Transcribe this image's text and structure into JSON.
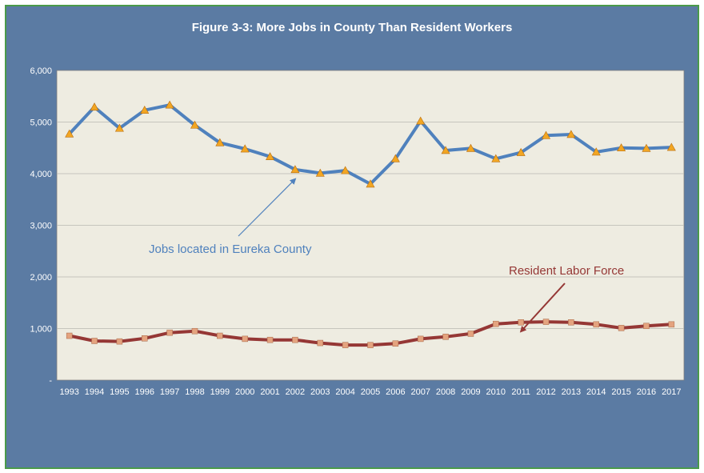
{
  "chart_data": {
    "type": "line",
    "title": "Figure 3-3: More Jobs in County Than Resident Workers",
    "categories": [
      "1993",
      "1994",
      "1995",
      "1996",
      "1997",
      "1998",
      "1999",
      "2000",
      "2001",
      "2002",
      "2003",
      "2004",
      "2005",
      "2006",
      "2007",
      "2008",
      "2009",
      "2010",
      "2011",
      "2012",
      "2013",
      "2014",
      "2015",
      "2016",
      "2017"
    ],
    "series": [
      {
        "name": "Jobs located in Eureka County",
        "color": "#4f81bd",
        "marker_color": "#f2a623",
        "marker": "triangle",
        "values": [
          4770,
          5290,
          4880,
          5230,
          5330,
          4940,
          4600,
          4480,
          4330,
          4080,
          4010,
          4060,
          3800,
          4290,
          5020,
          4450,
          4490,
          4290,
          4410,
          4740,
          4760,
          4420,
          4500,
          4490,
          4510
        ]
      },
      {
        "name": "Resident Labor Force",
        "color": "#953735",
        "marker_color": "#e4a37f",
        "marker": "square",
        "values": [
          860,
          760,
          750,
          810,
          920,
          950,
          860,
          800,
          780,
          780,
          720,
          680,
          680,
          710,
          800,
          840,
          900,
          1090,
          1120,
          1130,
          1120,
          1080,
          1010,
          1050,
          1080
        ]
      }
    ],
    "y_ticks": [
      "-",
      "1,000",
      "2,000",
      "3,000",
      "4,000",
      "5,000",
      "6,000"
    ],
    "ylim": [
      0,
      6000
    ],
    "grid": true,
    "annotations": [
      {
        "text": "Jobs located in Eureka County",
        "color": "#4f81bd",
        "points_to": {
          "x": "2002",
          "y": 4080
        }
      },
      {
        "text": "Resident Labor Force",
        "color": "#953735",
        "points_to": {
          "x": "2011",
          "y": 1130
        }
      }
    ]
  }
}
